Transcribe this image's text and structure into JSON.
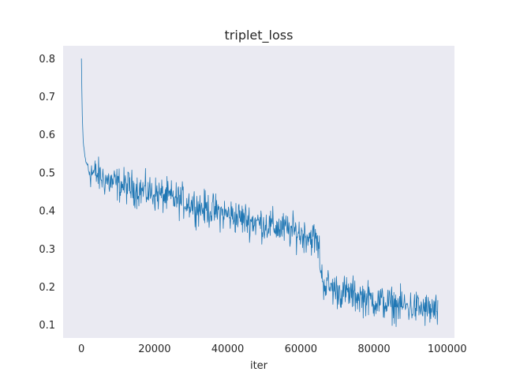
{
  "chart_data": {
    "type": "line",
    "title": "triplet_loss",
    "xlabel": "iter",
    "ylabel": "",
    "xlim": [
      -5000,
      102000
    ],
    "ylim": [
      0.066,
      0.834
    ],
    "xticks": [
      0,
      20000,
      40000,
      60000,
      80000,
      100000
    ],
    "xtick_labels": [
      "0",
      "20000",
      "40000",
      "60000",
      "80000",
      "100000"
    ],
    "yticks": [
      0.1,
      0.2,
      0.3,
      0.4,
      0.5,
      0.6,
      0.7,
      0.8
    ],
    "ytick_labels": [
      "0.1",
      "0.2",
      "0.3",
      "0.4",
      "0.5",
      "0.6",
      "0.7",
      "0.8"
    ],
    "grid": false,
    "background_color": "#eaeaf2",
    "line_color": "#1f77b4",
    "series": [
      {
        "x": [
          0,
          200,
          500,
          1000,
          1500,
          2000,
          3000,
          4000,
          5000,
          6000,
          8000,
          10000,
          12000,
          14000,
          16000,
          18000,
          20000,
          22000,
          24000,
          26000,
          28000,
          30000,
          32000,
          34000,
          36000,
          38000,
          40000,
          42000,
          44000,
          46000,
          48000,
          50000,
          52000,
          54000,
          56000,
          58000,
          60000,
          62000,
          64000,
          65000,
          65500,
          66000,
          67000,
          68000,
          70000,
          72000,
          74000,
          76000,
          78000,
          80000,
          82000,
          84000,
          86000,
          88000,
          90000,
          92000,
          94000,
          96000,
          97500
        ],
        "y": [
          0.8,
          0.66,
          0.58,
          0.54,
          0.52,
          0.51,
          0.5,
          0.495,
          0.49,
          0.485,
          0.475,
          0.47,
          0.465,
          0.46,
          0.455,
          0.45,
          0.445,
          0.44,
          0.435,
          0.43,
          0.425,
          0.42,
          0.41,
          0.405,
          0.4,
          0.395,
          0.39,
          0.385,
          0.38,
          0.375,
          0.37,
          0.365,
          0.36,
          0.355,
          0.35,
          0.345,
          0.34,
          0.335,
          0.325,
          0.3,
          0.24,
          0.215,
          0.205,
          0.2,
          0.19,
          0.185,
          0.18,
          0.175,
          0.17,
          0.165,
          0.16,
          0.155,
          0.152,
          0.15,
          0.147,
          0.145,
          0.14,
          0.138,
          0.135
        ]
      }
    ]
  }
}
